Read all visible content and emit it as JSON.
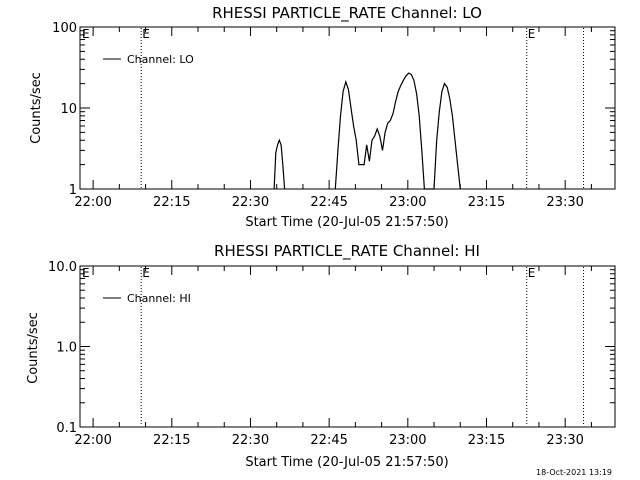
{
  "chart_data": [
    {
      "type": "line",
      "title": "RHESSI PARTICLE_RATE Channel: LO",
      "xlabel": "Start Time (20-Jul-05 21:57:50)",
      "ylabel": "Counts/sec",
      "yscale": "log",
      "xlim": [
        "21:57:30",
        "23:39:30"
      ],
      "ylim": [
        1,
        100
      ],
      "x_ticks": [
        "22:00",
        "22:15",
        "22:30",
        "22:45",
        "23:00",
        "23:15",
        "23:30"
      ],
      "y_ticks": [
        "1",
        "10",
        "100"
      ],
      "grid": false,
      "legend": {
        "position": "top-left",
        "entries": [
          "Channel: LO"
        ]
      },
      "flag_lines": [
        {
          "time": "22:09:10",
          "label": "E"
        },
        {
          "time": "23:22:40",
          "label": "E"
        },
        {
          "time": "23:33:30",
          "label": ""
        }
      ],
      "edge_flag": "E",
      "series": [
        {
          "name": "Channel: LO",
          "x": [
            "22:34:30",
            "22:34:50",
            "22:35:10",
            "22:35:30",
            "22:35:50",
            "22:36:10",
            "22:36:30",
            "22:46:10",
            "22:46:40",
            "22:47:10",
            "22:47:40",
            "22:48:10",
            "22:48:40",
            "22:49:10",
            "22:49:40",
            "22:50:10",
            "22:50:40",
            "22:51:10",
            "22:51:40",
            "22:52:10",
            "22:52:40",
            "22:53:10",
            "22:53:40",
            "22:54:10",
            "22:54:40",
            "22:55:10",
            "22:55:40",
            "22:56:10",
            "22:56:40",
            "22:57:10",
            "22:57:40",
            "22:58:10",
            "22:58:40",
            "22:59:10",
            "22:59:40",
            "23:00:10",
            "23:00:40",
            "23:01:10",
            "23:01:40",
            "23:02:10",
            "23:02:40",
            "23:03:10",
            "23:05:00",
            "23:05:30",
            "23:06:00",
            "23:06:30",
            "23:07:00",
            "23:07:30",
            "23:08:00",
            "23:08:30",
            "23:09:00",
            "23:09:30",
            "23:10:00"
          ],
          "y": [
            1.0,
            2.8,
            3.5,
            4.0,
            3.5,
            2.0,
            1.0,
            1.0,
            3.0,
            8.0,
            16,
            21,
            17,
            10,
            6.0,
            4.0,
            2.0,
            2.0,
            2.0,
            3.5,
            2.2,
            4.0,
            4.5,
            5.5,
            4.5,
            3.0,
            5.0,
            6.5,
            7.0,
            8.5,
            12,
            16,
            19,
            22,
            25,
            27,
            26,
            22,
            15,
            8.0,
            3.0,
            1.0,
            1.0,
            4.0,
            9.0,
            16,
            20,
            18,
            13,
            8.0,
            4.0,
            2.0,
            1.0
          ]
        }
      ]
    },
    {
      "type": "line",
      "title": "RHESSI PARTICLE_RATE Channel: HI",
      "xlabel": "Start Time (20-Jul-05 21:57:50)",
      "ylabel": "Counts/sec",
      "yscale": "log",
      "xlim": [
        "21:57:30",
        "23:39:30"
      ],
      "ylim": [
        0.1,
        10
      ],
      "x_ticks": [
        "22:00",
        "22:15",
        "22:30",
        "22:45",
        "23:00",
        "23:15",
        "23:30"
      ],
      "y_ticks": [
        "0.1",
        "1.0",
        "10.0"
      ],
      "grid": false,
      "legend": {
        "position": "top-left",
        "entries": [
          "Channel: HI"
        ]
      },
      "flag_lines": [
        {
          "time": "22:09:10",
          "label": "E"
        },
        {
          "time": "23:22:40",
          "label": "E"
        },
        {
          "time": "23:33:30",
          "label": ""
        }
      ],
      "edge_flag": "E",
      "series": [
        {
          "name": "Channel: HI",
          "x": [],
          "y": []
        }
      ]
    }
  ],
  "timestamp": "18-Oct-2021 13:19"
}
